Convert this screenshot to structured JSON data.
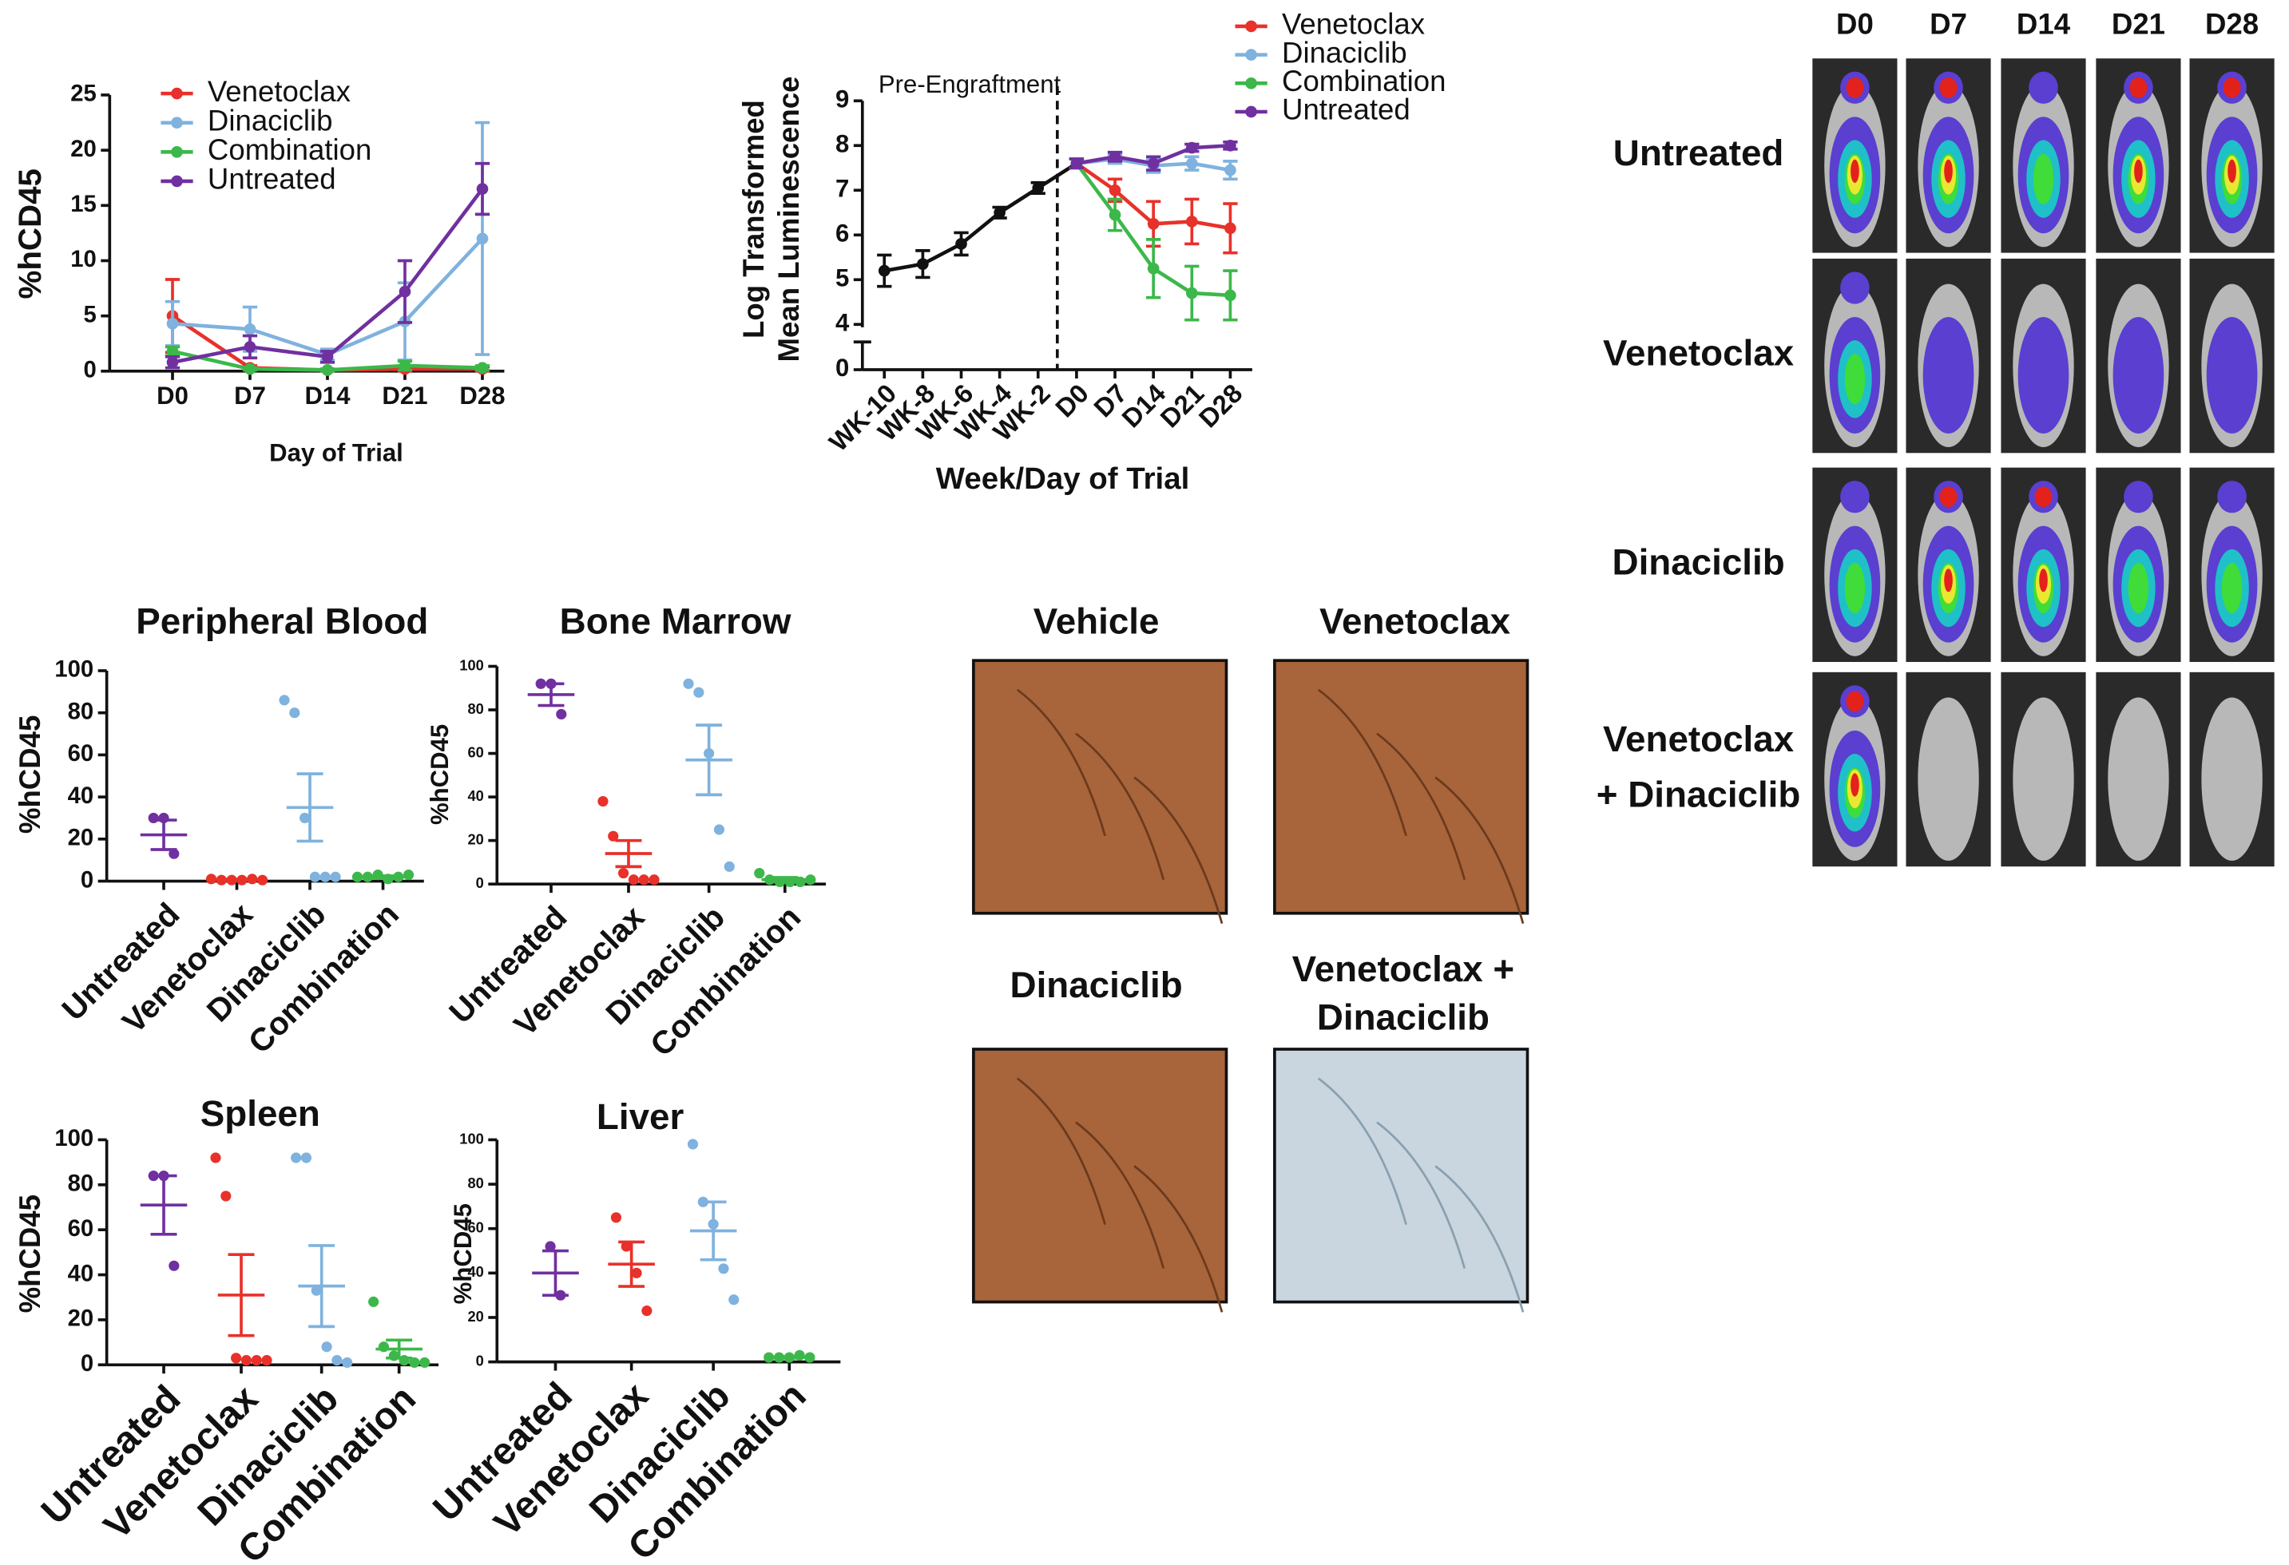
{
  "chart_data": [
    {
      "type": "line",
      "xlabel": "Day of Trial",
      "ylabel": "%hCD45",
      "categories": [
        "D0",
        "D7",
        "D14",
        "D21",
        "D28"
      ],
      "ylim": [
        0,
        25
      ],
      "yticks": [
        0,
        5,
        10,
        15,
        20,
        25
      ],
      "legend": "upper left",
      "series": [
        {
          "name": "Venetoclax",
          "color": "#e8312a",
          "values": [
            5,
            0.3,
            0.1,
            0.2,
            0.2
          ],
          "errors": [
            3.3,
            0.2,
            0.1,
            0.2,
            0.2
          ]
        },
        {
          "name": "Dinaciclib",
          "color": "#7fb2de",
          "values": [
            4.3,
            3.8,
            1.5,
            4.5,
            12
          ],
          "errors": [
            2,
            2,
            0.5,
            3.5,
            10.5
          ]
        },
        {
          "name": "Combination",
          "color": "#3cb84a",
          "values": [
            1.8,
            0.2,
            0.1,
            0.5,
            0.3
          ],
          "errors": [
            0.4,
            0.1,
            0.1,
            0.4,
            0.2
          ]
        },
        {
          "name": "Untreated",
          "color": "#7030a0",
          "values": [
            0.8,
            2.2,
            1.3,
            7.2,
            16.5
          ],
          "errors": [
            0.5,
            1,
            0.5,
            2.8,
            2.3
          ]
        }
      ]
    },
    {
      "type": "line",
      "xlabel": "Week/Day of Trial",
      "ylabel": [
        "Log Transformed",
        "Mean Luminescence"
      ],
      "annotation": "Pre-Engraftment",
      "categories": [
        "WK-10",
        "WK-8",
        "WK-6",
        "WK-4",
        "WK-2",
        "D0",
        "D7",
        "D14",
        "D21",
        "D28"
      ],
      "ylim": [
        0,
        9
      ],
      "yticks": [
        0,
        4,
        5,
        6,
        7,
        8,
        9
      ],
      "axis_break": [
        0,
        4
      ],
      "legend": "upper right",
      "series": [
        {
          "color": "#111111",
          "values": [
            5.2,
            5.35,
            5.8,
            6.5,
            7.05,
            7.6,
            null,
            null,
            null,
            null
          ],
          "errors": [
            0.35,
            0.3,
            0.25,
            0.12,
            0.12,
            0.1,
            null,
            null,
            null,
            null
          ]
        },
        {
          "name": "Venetoclax",
          "color": "#e8312a",
          "values": [
            null,
            null,
            null,
            null,
            null,
            7.6,
            7.0,
            6.25,
            6.3,
            6.15
          ],
          "errors": [
            null,
            null,
            null,
            null,
            null,
            0.1,
            0.25,
            0.5,
            0.5,
            0.55
          ]
        },
        {
          "name": "Dinaciclib",
          "color": "#7fb2de",
          "values": [
            null,
            null,
            null,
            null,
            null,
            7.6,
            7.7,
            7.55,
            7.6,
            7.45
          ],
          "errors": [
            null,
            null,
            null,
            null,
            null,
            0.1,
            0.1,
            0.15,
            0.15,
            0.2
          ]
        },
        {
          "name": "Combination",
          "color": "#3cb84a",
          "values": [
            null,
            null,
            null,
            null,
            null,
            7.6,
            6.45,
            5.25,
            4.7,
            4.65
          ],
          "errors": [
            null,
            null,
            null,
            null,
            null,
            0.1,
            0.35,
            0.65,
            0.6,
            0.55
          ]
        },
        {
          "name": "Untreated",
          "color": "#7030a0",
          "values": [
            null,
            null,
            null,
            null,
            null,
            7.6,
            7.75,
            7.6,
            7.95,
            8.0
          ],
          "errors": [
            null,
            null,
            null,
            null,
            null,
            0.1,
            0.1,
            0.15,
            0.08,
            0.08
          ]
        }
      ]
    },
    {
      "type": "dot",
      "title": "Peripheral Blood",
      "ylabel": "%hCD45",
      "categories": [
        "Untreated",
        "Venetoclax",
        "Dinaciclib",
        "Combination"
      ],
      "ylim": [
        0,
        100
      ],
      "yticks": [
        0,
        20,
        40,
        60,
        80,
        100
      ],
      "series": [
        {
          "color": "#7030a0",
          "points": [
            30,
            30,
            13
          ],
          "mean": 22,
          "sem": 7
        },
        {
          "color": "#e8312a",
          "points": [
            1,
            0.5,
            0.5,
            0.5,
            1,
            0.5
          ],
          "mean": 0.7,
          "sem": 0.2
        },
        {
          "color": "#7fb2de",
          "points": [
            86,
            80,
            30,
            2,
            2,
            2
          ],
          "mean": 35,
          "sem": 16
        },
        {
          "color": "#3cb84a",
          "points": [
            2,
            2,
            3,
            1,
            2,
            3
          ],
          "mean": 2,
          "sem": 0.5
        }
      ]
    },
    {
      "type": "dot",
      "title": "Bone Marrow",
      "ylabel": "%hCD45",
      "categories": [
        "Untreated",
        "Venetoclax",
        "Dinaciclib",
        "Combination"
      ],
      "ylim": [
        0,
        100
      ],
      "yticks": [
        0,
        20,
        40,
        60,
        80,
        100
      ],
      "series": [
        {
          "color": "#7030a0",
          "points": [
            92,
            92,
            78
          ],
          "mean": 87,
          "sem": 5
        },
        {
          "color": "#e8312a",
          "points": [
            38,
            22,
            5,
            2,
            2,
            2
          ],
          "mean": 14,
          "sem": 6
        },
        {
          "color": "#7fb2de",
          "points": [
            92,
            88,
            60,
            25,
            8
          ],
          "mean": 57,
          "sem": 16
        },
        {
          "color": "#3cb84a",
          "points": [
            5,
            2,
            1,
            1,
            1,
            2
          ],
          "mean": 2,
          "sem": 1
        }
      ]
    },
    {
      "type": "dot",
      "title": "Spleen",
      "ylabel": "%hCD45",
      "categories": [
        "Untreated",
        "Venetoclax",
        "Dinaciclib",
        "Combination"
      ],
      "ylim": [
        0,
        100
      ],
      "yticks": [
        0,
        20,
        40,
        60,
        80,
        100
      ],
      "series": [
        {
          "color": "#7030a0",
          "points": [
            84,
            84,
            44
          ],
          "mean": 71,
          "sem": 13
        },
        {
          "color": "#e8312a",
          "points": [
            92,
            75,
            3,
            2,
            2,
            2
          ],
          "mean": 31,
          "sem": 18
        },
        {
          "color": "#7fb2de",
          "points": [
            92,
            92,
            33,
            8,
            2,
            1
          ],
          "mean": 35,
          "sem": 18
        },
        {
          "color": "#3cb84a",
          "points": [
            28,
            8,
            4,
            2,
            1,
            1
          ],
          "mean": 7,
          "sem": 4
        }
      ]
    },
    {
      "type": "dot",
      "title": "Liver",
      "ylabel": "%hCD45",
      "categories": [
        "Untreated",
        "Venetoclax",
        "Dinaciclib",
        "Combination"
      ],
      "ylim": [
        0,
        100
      ],
      "yticks": [
        0,
        20,
        40,
        60,
        80,
        100
      ],
      "series": [
        {
          "color": "#7030a0",
          "points": [
            52,
            30
          ],
          "mean": 40,
          "sem": 10
        },
        {
          "color": "#e8312a",
          "points": [
            65,
            52,
            40,
            23
          ],
          "mean": 44,
          "sem": 10
        },
        {
          "color": "#7fb2de",
          "points": [
            98,
            72,
            62,
            42,
            28
          ],
          "mean": 59,
          "sem": 13
        },
        {
          "color": "#3cb84a",
          "points": [
            2,
            2,
            2,
            3,
            2
          ],
          "mean": 2,
          "sem": 0.3
        }
      ]
    }
  ],
  "ivis": {
    "columns": [
      "D0",
      "D7",
      "D14",
      "D21",
      "D28"
    ],
    "rows": [
      [
        "Untreated"
      ],
      [
        "Venetoclax"
      ],
      [
        "Dinaciclib"
      ],
      [
        "Venetoclax",
        "+ Dinaciclib"
      ]
    ]
  },
  "ihc": {
    "panels": [
      [
        "Vehicle"
      ],
      [
        "Venetoclax"
      ],
      [
        "Dinaciclib"
      ],
      [
        "Venetoclax +",
        "Dinaciclib"
      ]
    ]
  }
}
